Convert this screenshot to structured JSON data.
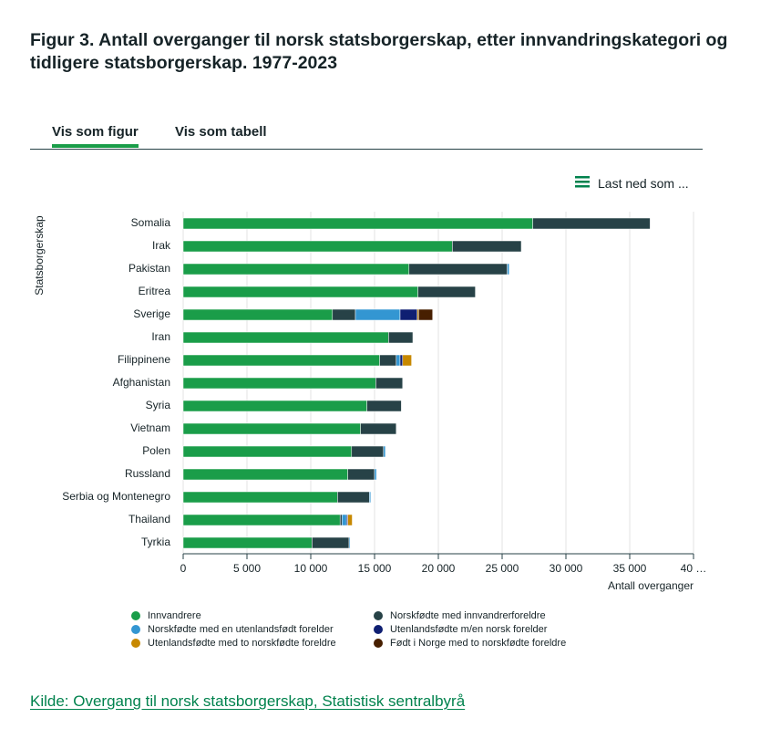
{
  "page": {
    "tabs": [
      "Vis som figur",
      "Vis som tabell"
    ],
    "download": "Last ned som ...",
    "source": "Kilde: Overgang til norsk statsborgerskap, Statistisk sentralbyrå"
  },
  "chart_data": {
    "type": "stacked-barh",
    "title": "Figur 3. Antall overganger til norsk statsborgerskap, etter innvandringskategori og tidligere statsborgerskap. 1977-2023",
    "x_label": "Antall overganger",
    "y_label": "Statsborgerskap",
    "categories": [
      "Somalia",
      "Irak",
      "Pakistan",
      "Eritrea",
      "Sverige",
      "Iran",
      "Filippinene",
      "Afghanistan",
      "Syria",
      "Vietnam",
      "Polen",
      "Russland",
      "Serbia og Montenegro",
      "Thailand",
      "Tyrkia"
    ],
    "series": [
      {
        "name": "Innvandrere",
        "color": "#1a9d49",
        "values": [
          27400,
          21100,
          17700,
          18400,
          11700,
          16100,
          15400,
          15100,
          14400,
          13900,
          13200,
          12900,
          12100,
          12300,
          10100
        ]
      },
      {
        "name": "Norskfødte med innvandrerforeldre",
        "color": "#274247",
        "values": [
          9200,
          5400,
          7700,
          4500,
          1800,
          1900,
          1300,
          2100,
          2700,
          2800,
          2500,
          2100,
          2500,
          150,
          2900
        ]
      },
      {
        "name": "Norskfødte med en utenlandsfødt forelder",
        "color": "#3396d2",
        "values": [
          0,
          0,
          150,
          0,
          3500,
          0,
          300,
          0,
          0,
          0,
          150,
          150,
          100,
          350,
          80
        ]
      },
      {
        "name": "Utenlandsfødte m/en norsk forelder",
        "color": "#0f1f72",
        "values": [
          0,
          0,
          0,
          0,
          1350,
          0,
          200,
          0,
          0,
          0,
          0,
          0,
          0,
          100,
          0
        ]
      },
      {
        "name": "Utenlandsfødte med to norskfødte foreldre",
        "color": "#c78800",
        "values": [
          0,
          0,
          0,
          0,
          100,
          0,
          700,
          0,
          0,
          0,
          0,
          0,
          0,
          350,
          0
        ]
      },
      {
        "name": "Født i Norge med to norskfødte foreldre",
        "color": "#471f00",
        "values": [
          0,
          0,
          0,
          0,
          1100,
          0,
          0,
          0,
          0,
          0,
          0,
          0,
          0,
          0,
          0
        ]
      }
    ],
    "xlim": [
      0,
      40000
    ],
    "xticks": [
      0,
      {
        "value": 5000,
        "label": "5 000"
      },
      {
        "value": 10000,
        "label": "10 000"
      },
      {
        "value": 15000,
        "label": "15 000"
      },
      {
        "value": 20000,
        "label": "20 000"
      },
      {
        "value": 25000,
        "label": "25 000"
      },
      {
        "value": 30000,
        "label": "30 000"
      },
      {
        "value": 35000,
        "label": "35 000"
      },
      {
        "value": 40000,
        "label": "40 …"
      }
    ],
    "grid": true
  }
}
